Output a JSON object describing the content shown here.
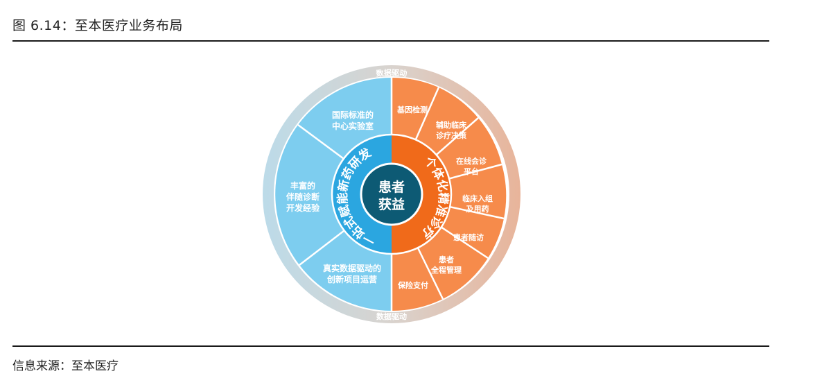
{
  "figure": {
    "title": "图 6.14：至本医疗业务布局",
    "source": "信息来源：至本医疗"
  },
  "diagram": {
    "center_line1": "患者",
    "center_line2": "获益",
    "outer_ring_top": "数据驱动",
    "outer_ring_bottom": "数据驱动",
    "left_arc_label": "一站式赋能新药研发",
    "right_arc_label": "个体化精准诊疗",
    "left_segments": [
      {
        "line1": "国际标准的",
        "line2": "中心实验室"
      },
      {
        "line1": "丰富的",
        "line2": "伴随诊断",
        "line3": "开发经验"
      },
      {
        "line1": "真实数据驱动的",
        "line2": "创新项目运营"
      }
    ],
    "right_segments": [
      {
        "line1": "基因检测"
      },
      {
        "line1": "辅助临床",
        "line2": "诊疗决策"
      },
      {
        "line1": "在线会诊",
        "line2": "平台"
      },
      {
        "line1": "临床入组",
        "line2": "及用药"
      },
      {
        "line1": "患者随访"
      },
      {
        "line1": "患者",
        "line2": "全程管理"
      },
      {
        "line1": "保险支付"
      }
    ],
    "colors": {
      "left_outer": "#7dcdef",
      "left_inner": "#2ba6e0",
      "right_outer": "#f68b4b",
      "right_inner": "#f06a1a",
      "center": "#0d5a74",
      "ring_left": "#bcd9e6",
      "ring_right": "#e7b8a0"
    }
  }
}
